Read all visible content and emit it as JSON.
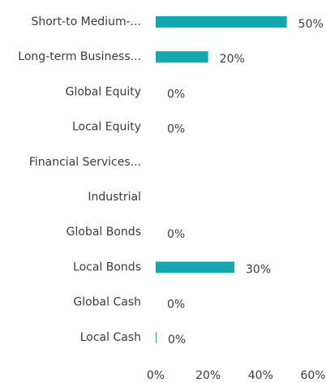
{
  "chart_data": {
    "type": "bar",
    "orientation": "horizontal",
    "categories": [
      "Short-to Medium-...",
      "Long-term Business...",
      "Global Equity",
      "Local Equity",
      "Financial Services...",
      "Industrial",
      "Global Bonds",
      "Local Bonds",
      "Global Cash",
      "Local Cash"
    ],
    "values": [
      50,
      20,
      0,
      0,
      null,
      null,
      0,
      30,
      0,
      0.3
    ],
    "value_labels": [
      "50%",
      "20%",
      "0%",
      "0%",
      null,
      null,
      "0%",
      "30%",
      "0%",
      "0%"
    ],
    "color": "#13a8b0",
    "xlim": [
      0,
      60
    ],
    "xticks": [
      {
        "value": 0,
        "label": "0%"
      },
      {
        "value": 20,
        "label": "20%"
      },
      {
        "value": 40,
        "label": "40%"
      },
      {
        "value": 60,
        "label": "60%"
      }
    ],
    "grid": false
  }
}
